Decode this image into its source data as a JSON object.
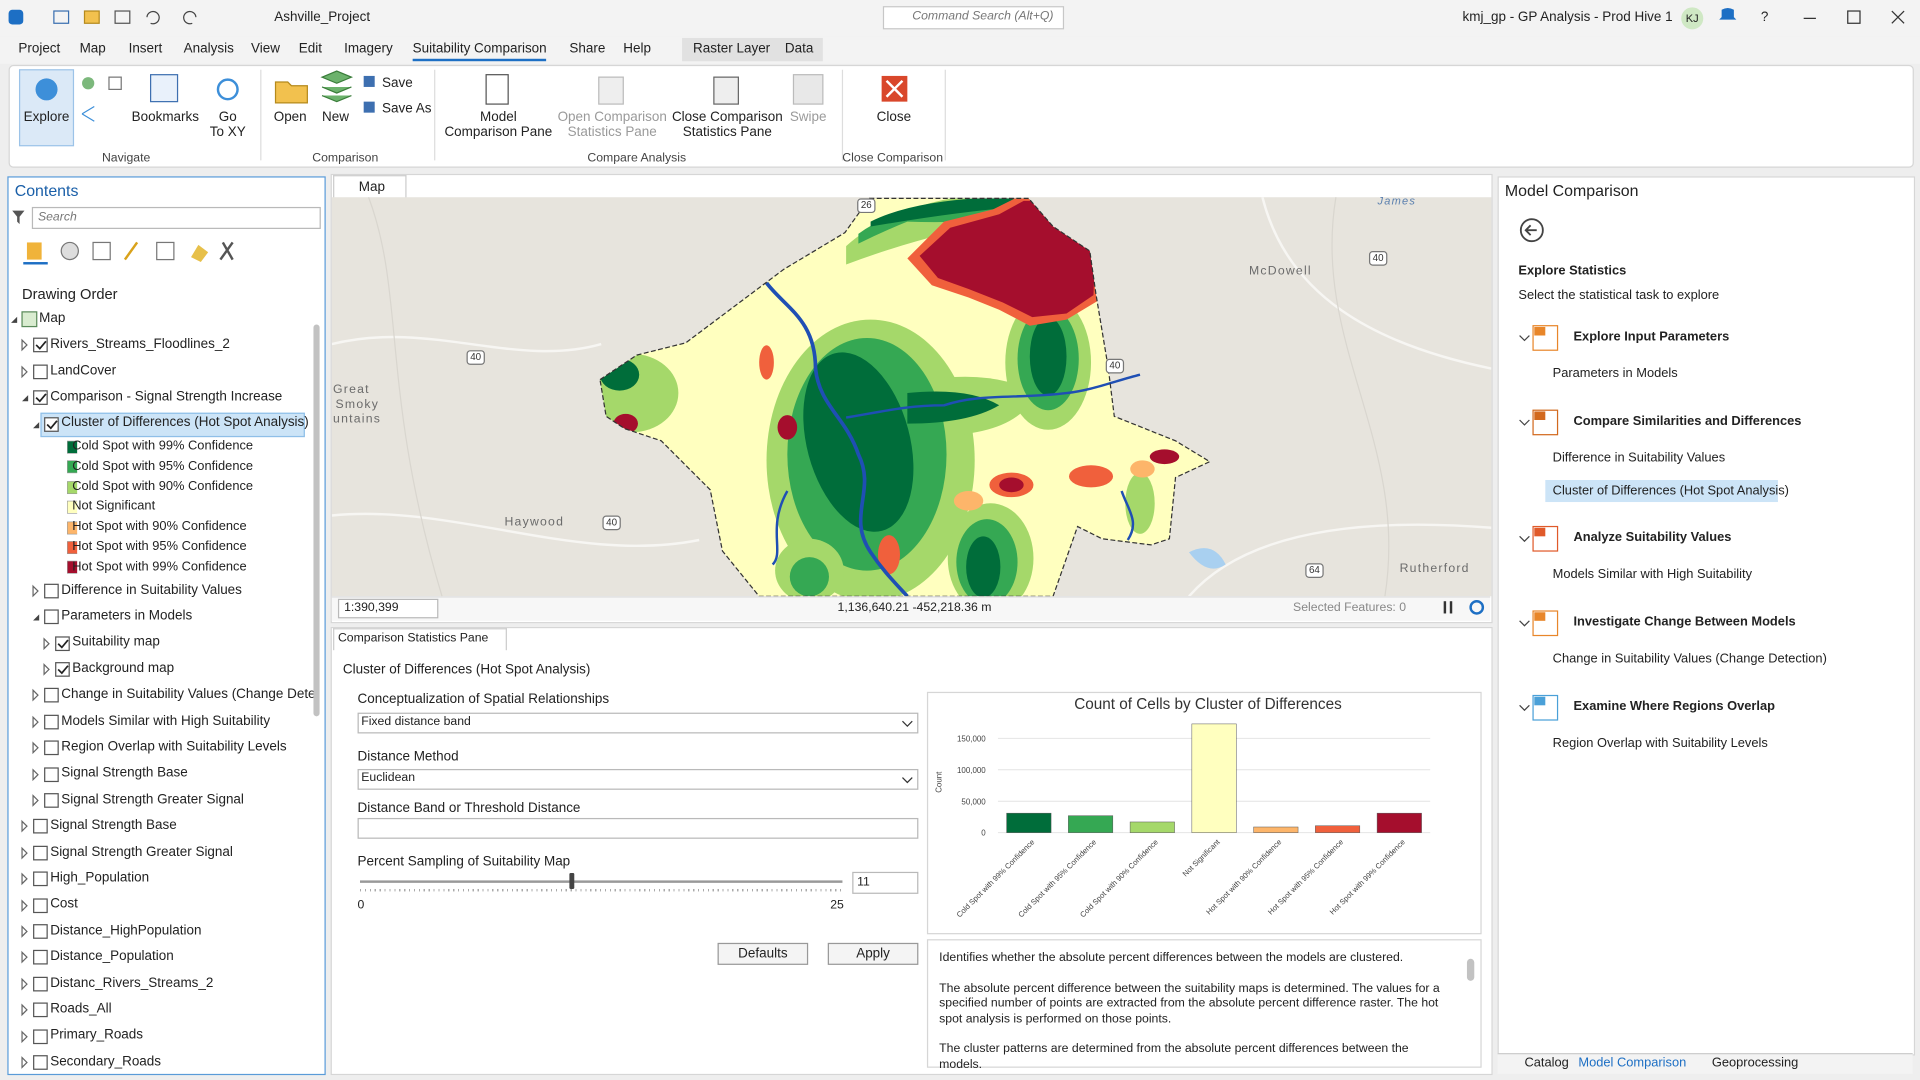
{
  "title_bar": {
    "project": "Ashville_Project",
    "search": "Command Search (Alt+Q)",
    "title": "kmj_gp - GP Analysis - Prod Hive 1",
    "user": "KJ",
    "help": "?"
  },
  "menu": {
    "tabs": [
      "Project",
      "Map",
      "Insert",
      "Analysis",
      "View",
      "Edit",
      "Imagery",
      "Suitability Comparison",
      "Share",
      "Help"
    ],
    "context_tabs": [
      "Raster Layer",
      "Data"
    ]
  },
  "ribbon": {
    "buttons": [
      "Explore",
      "Bookmarks",
      "Go\nTo XY",
      "Open",
      "New",
      "Save",
      "Save As",
      "Model\nComparison Pane",
      "Open Comparison\nStatistics Pane",
      "Close Comparison\nStatistics Pane",
      "Swipe",
      "Close"
    ],
    "groups": [
      "Navigate",
      "Comparison",
      "Compare Analysis",
      "Close Comparison"
    ]
  },
  "contents": {
    "title": "Contents",
    "search": "Search",
    "drawing_order": "Drawing Order",
    "items": [
      {
        "label": "Map",
        "level": 0,
        "expanded": true,
        "icon": "map"
      },
      {
        "label": "Rivers_Streams_Floodlines_2",
        "level": 1,
        "checked": true,
        "expanded": false
      },
      {
        "label": "LandCover",
        "level": 1,
        "checked": false,
        "expanded": false
      },
      {
        "label": "Comparison - Signal Strength Increase",
        "level": 1,
        "checked": true,
        "expanded": true
      },
      {
        "label": "Cluster of Differences (Hot Spot Analysis)",
        "level": 2,
        "checked": true,
        "expanded": true,
        "selected": true
      },
      {
        "label": "Cold Spot with 99% Confidence",
        "level": 3,
        "swatch": "#006d3a"
      },
      {
        "label": "Cold Spot with 95% Confidence",
        "level": 3,
        "swatch": "#35a853"
      },
      {
        "label": "Cold Spot with 90% Confidence",
        "level": 3,
        "swatch": "#a5d86a"
      },
      {
        "label": "Not Significant",
        "level": 3,
        "swatch": "#ffffbf"
      },
      {
        "label": "Hot Spot with 90% Confidence",
        "level": 3,
        "swatch": "#fdb56a"
      },
      {
        "label": "Hot Spot with 95% Confidence",
        "level": 3,
        "swatch": "#f0603c"
      },
      {
        "label": "Hot Spot with 99% Confidence",
        "level": 3,
        "swatch": "#a50e2d"
      },
      {
        "label": "Difference in Suitability Values",
        "level": 2,
        "checked": false,
        "expanded": false
      },
      {
        "label": "Parameters in Models",
        "level": 2,
        "checked": false,
        "expanded": true
      },
      {
        "label": "Suitability map",
        "level": 3,
        "checked": true,
        "expanded": false
      },
      {
        "label": "Background map",
        "level": 3,
        "checked": true,
        "expanded": false
      },
      {
        "label": "Change in Suitability Values (Change Detect…",
        "level": 2,
        "checked": false,
        "expanded": false
      },
      {
        "label": "Models Similar with High Suitability",
        "level": 2,
        "checked": false,
        "expanded": false
      },
      {
        "label": "Region Overlap with Suitability Levels",
        "level": 2,
        "checked": false,
        "expanded": false
      },
      {
        "label": "Signal Strength Base",
        "level": 2,
        "checked": false,
        "expanded": false
      },
      {
        "label": "Signal Strength Greater Signal",
        "level": 2,
        "checked": false,
        "expanded": false
      },
      {
        "label": "Signal Strength Base",
        "level": 1,
        "checked": false,
        "expanded": false
      },
      {
        "label": "Signal Strength Greater Signal",
        "level": 1,
        "checked": false,
        "expanded": false
      },
      {
        "label": "High_Population",
        "level": 1,
        "checked": false,
        "expanded": false
      },
      {
        "label": "Cost",
        "level": 1,
        "checked": false,
        "expanded": false
      },
      {
        "label": "Distance_HighPopulation",
        "level": 1,
        "checked": false,
        "expanded": false
      },
      {
        "label": "Distance_Population",
        "level": 1,
        "checked": false,
        "expanded": false
      },
      {
        "label": "Distanc_Rivers_Streams_2",
        "level": 1,
        "checked": false,
        "expanded": false
      },
      {
        "label": "Roads_All",
        "level": 1,
        "checked": false,
        "expanded": false
      },
      {
        "label": "Primary_Roads",
        "level": 1,
        "checked": false,
        "expanded": false
      },
      {
        "label": "Secondary_Roads",
        "level": 1,
        "checked": false,
        "expanded": false
      }
    ]
  },
  "map": {
    "tab": "Map",
    "places": [
      "McDowell",
      "Haywood",
      "Great",
      "Smoky",
      "untains",
      "Rutherford",
      "James"
    ],
    "shields": [
      "26",
      "40",
      "40",
      "40",
      "40",
      "64"
    ],
    "scale": "1:390,399",
    "coordinates": "1,136,640.21 -452,218.36 m",
    "selected": "Selected Features: 0"
  },
  "statistics_pane": {
    "tab": "Comparison Statistics Pane",
    "heading": "Cluster of Differences (Hot Spot Analysis)",
    "conceptualization": {
      "label": "Conceptualization of Spatial Relationships",
      "value": "Fixed distance band"
    },
    "distance_method": {
      "label": "Distance Method",
      "value": "Euclidean"
    },
    "distance_band": {
      "label": "Distance Band or Threshold Distance"
    },
    "sampling": {
      "label": "Percent Sampling of Suitability Map",
      "value": 11,
      "min": 0,
      "max": 25
    },
    "buttons": [
      "Defaults",
      "Apply"
    ],
    "description": [
      "Identifies whether the absolute percent differences between the models are clustered.",
      "The absolute percent difference between the suitability maps is determined. The values for a specified number of points are extracted from the absolute percent difference raster. The hot spot analysis is performed on those points.",
      "The cluster patterns are determined from the absolute percent differences between the models."
    ]
  },
  "chart_data": {
    "type": "bar",
    "title": "Count of Cells by Cluster of Differences",
    "y_label": "Count",
    "categories": [
      "Cold Spot with 99% Confidence",
      "Cold Spot with 95% Confidence",
      "Cold Spot with 90% Confidence",
      "Not Significant",
      "Hot Spot with 90% Confidence",
      "Hot Spot with 95% Confidence",
      "Hot Spot with 99% Confidence"
    ],
    "values": [
      31000,
      27000,
      17000,
      173000,
      9000,
      11000,
      31000
    ],
    "colors": [
      "#006d3a",
      "#35a853",
      "#a5d86a",
      "#ffffbf",
      "#fdb56a",
      "#f0603c",
      "#a50e2d"
    ],
    "ylim": [
      0,
      180000
    ],
    "yticks": [
      0,
      {
        "value": 50000,
        "label": "50,000"
      },
      {
        "value": 100000,
        "label": "100,000"
      },
      {
        "value": 150000,
        "label": "150,000"
      }
    ],
    "grid": true
  },
  "model_comparison": {
    "title": "Model Comparison",
    "heading": "Explore Statistics",
    "subheading": "Select the statistical task to explore",
    "sections": [
      {
        "title": "Explore Input Parameters",
        "items": [
          "Parameters in Models"
        ]
      },
      {
        "title": "Compare Similarities and Differences",
        "items": [
          "Difference in Suitability Values",
          "Cluster of Differences (Hot Spot Analysis)"
        ]
      },
      {
        "title": "Analyze Suitability Values",
        "items": [
          "Models Similar with High Suitability"
        ]
      },
      {
        "title": "Investigate Change Between Models",
        "items": [
          "Change in Suitability Values (Change Detection)"
        ]
      },
      {
        "title": "Examine Where Regions Overlap",
        "items": [
          "Region Overlap with Suitability Levels"
        ]
      }
    ]
  },
  "bottom_tabs": [
    "Catalog",
    "Model Comparison",
    "Geoprocessing"
  ]
}
